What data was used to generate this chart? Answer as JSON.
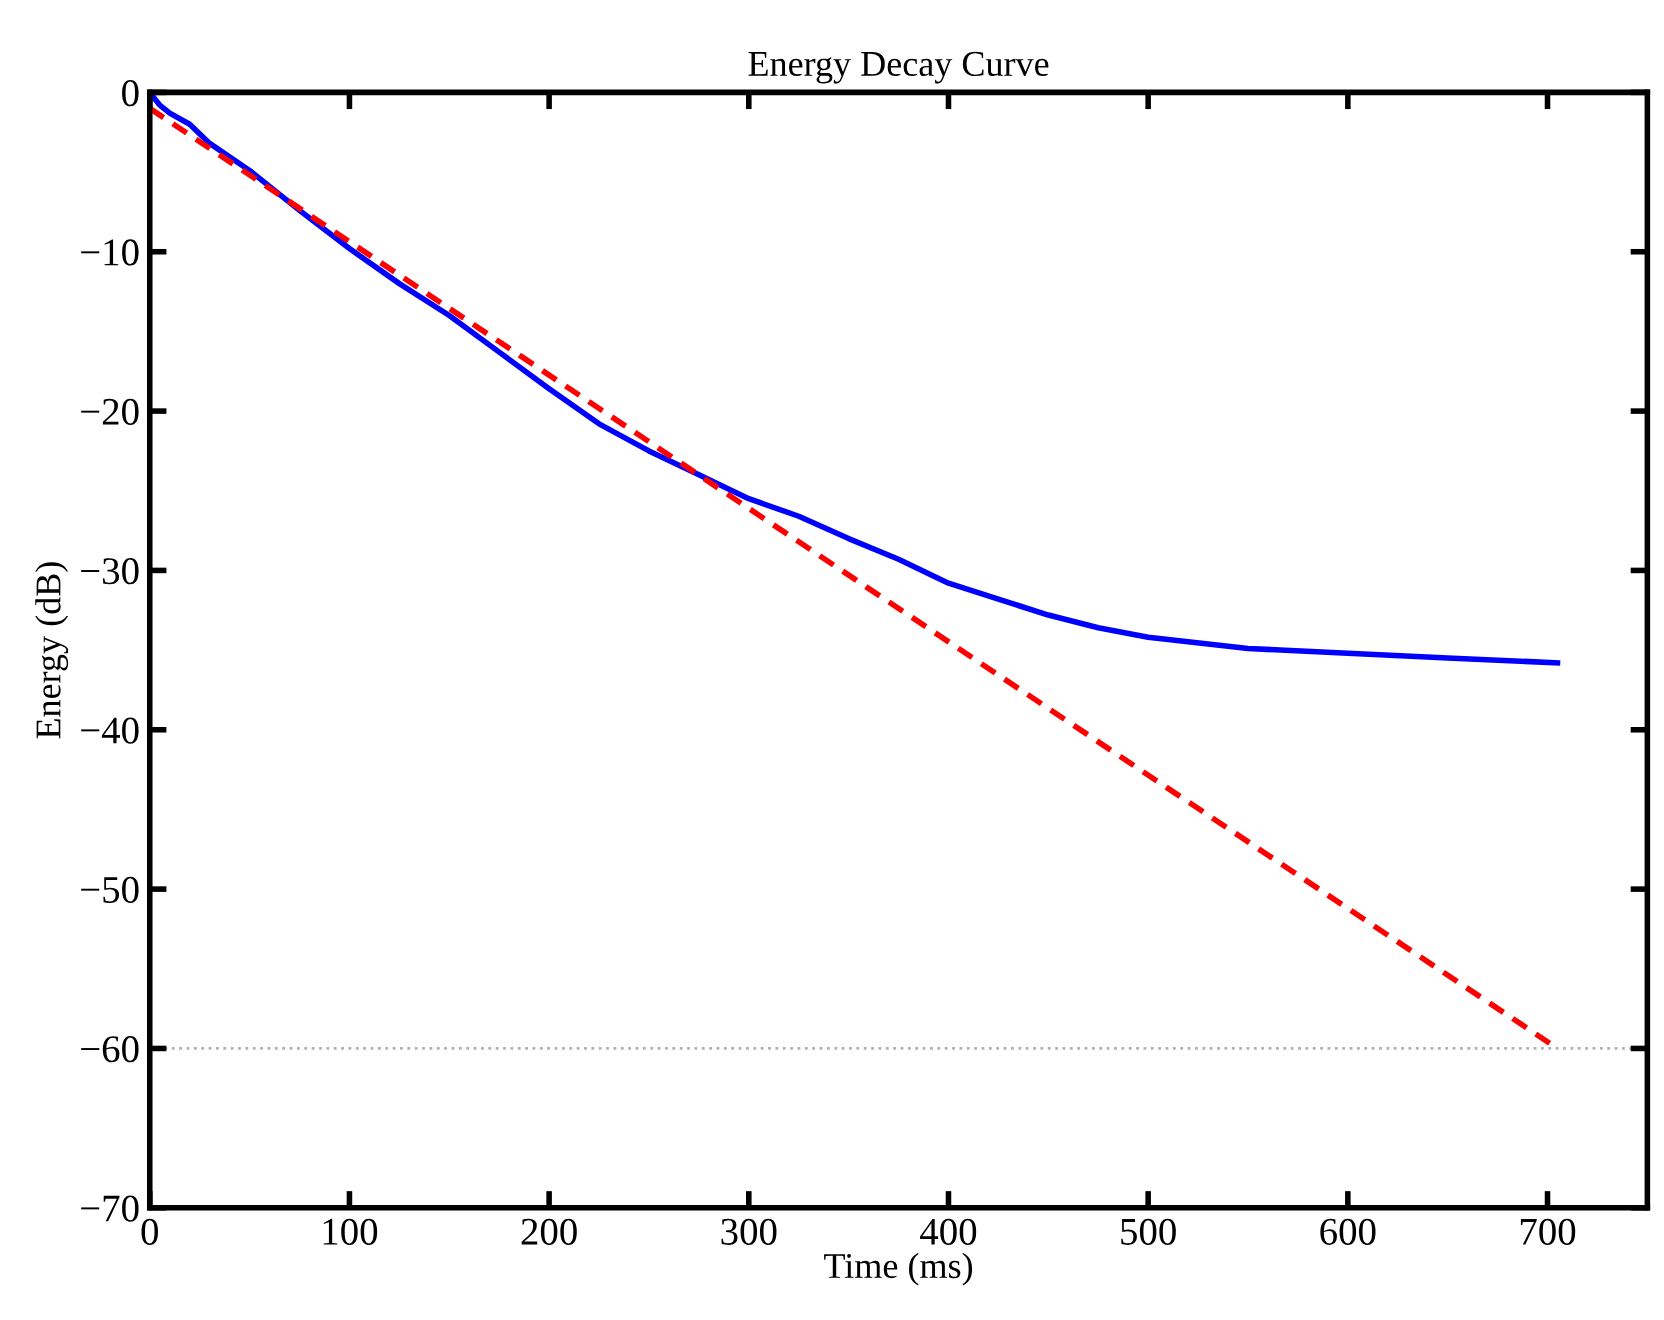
{
  "chart_data": {
    "type": "line",
    "title": "Energy Decay Curve",
    "xlabel": "Time (ms)",
    "ylabel": "Energy (dB)",
    "xlim": [
      0,
      750
    ],
    "xticks": [
      0,
      100,
      200,
      300,
      400,
      500,
      600,
      700
    ],
    "ylim": [
      -70,
      0
    ],
    "yticks": [
      -70,
      -60,
      -50,
      -40,
      -30,
      -20,
      -10,
      0
    ],
    "grid": false,
    "legend": false,
    "series": [
      {
        "color": "#0000ff",
        "line_style": "solid",
        "x": [
          0,
          5,
          10,
          20,
          30,
          50,
          75,
          100,
          125,
          150,
          175,
          200,
          225,
          250,
          275,
          300,
          325,
          350,
          375,
          400,
          425,
          450,
          475,
          500,
          550,
          600,
          650,
          705
        ],
        "values": [
          0,
          -0.8,
          -1.3,
          -2.0,
          -3.2,
          -4.9,
          -7.4,
          -9.8,
          -12.0,
          -14.0,
          -16.3,
          -18.6,
          -20.8,
          -22.5,
          -24.0,
          -25.5,
          -26.6,
          -28.0,
          -29.3,
          -30.8,
          -31.8,
          -32.8,
          -33.6,
          -34.2,
          -34.9,
          -35.2,
          -35.5,
          -35.8
        ]
      },
      {
        "color": "#ff0000",
        "line_style": "dashed",
        "x": [
          0,
          705
        ],
        "values": [
          -1.0,
          -60.0
        ]
      }
    ],
    "ref_lines": [
      {
        "axis": "y",
        "value": -60,
        "color": "#b0b0b0",
        "line_style": "dotted"
      }
    ]
  }
}
